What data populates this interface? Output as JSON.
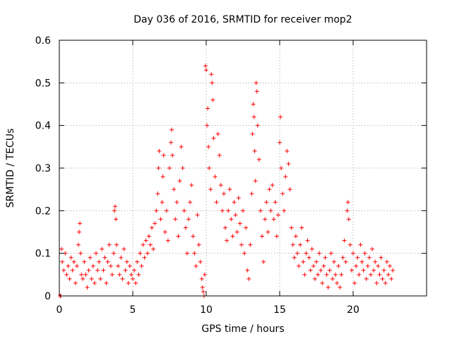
{
  "chart_data": {
    "type": "scatter",
    "title": "Day 036 of 2016, SRMTID for receiver mop2",
    "xlabel": "GPS time / hours",
    "ylabel": "SRMTID / TECUs",
    "xlim": [
      0,
      25
    ],
    "ylim": [
      0,
      0.6
    ],
    "xticks": [
      0,
      5,
      10,
      15,
      20
    ],
    "xtick_labels": [
      "0",
      "5",
      "10",
      "15",
      "20"
    ],
    "yticks": [
      0,
      0.1,
      0.2,
      0.3,
      0.4,
      0.5,
      0.6
    ],
    "ytick_labels": [
      "0",
      "0.1",
      "0.2",
      "0.3",
      "0.4",
      "0.5",
      "0.6"
    ],
    "grid": true,
    "marker": "+",
    "color": "#ff0000",
    "series": [
      {
        "name": "mop2",
        "points": [
          [
            0.05,
            0.0
          ],
          [
            0.1,
            0.0
          ],
          [
            0.15,
            0.11
          ],
          [
            0.2,
            0.08
          ],
          [
            0.3,
            0.06
          ],
          [
            0.4,
            0.1
          ],
          [
            0.5,
            0.05
          ],
          [
            0.6,
            0.07
          ],
          [
            0.7,
            0.04
          ],
          [
            0.8,
            0.09
          ],
          [
            0.9,
            0.06
          ],
          [
            1.0,
            0.08
          ],
          [
            1.1,
            0.03
          ],
          [
            1.2,
            0.07
          ],
          [
            1.3,
            0.12
          ],
          [
            1.35,
            0.15
          ],
          [
            1.4,
            0.17
          ],
          [
            1.45,
            0.1
          ],
          [
            1.5,
            0.05
          ],
          [
            1.6,
            0.04
          ],
          [
            1.7,
            0.08
          ],
          [
            1.8,
            0.05
          ],
          [
            1.9,
            0.02
          ],
          [
            2.0,
            0.06
          ],
          [
            2.1,
            0.09
          ],
          [
            2.2,
            0.04
          ],
          [
            2.3,
            0.07
          ],
          [
            2.4,
            0.03
          ],
          [
            2.5,
            0.1
          ],
          [
            2.6,
            0.06
          ],
          [
            2.7,
            0.08
          ],
          [
            2.8,
            0.04
          ],
          [
            2.9,
            0.11
          ],
          [
            3.0,
            0.06
          ],
          [
            3.1,
            0.09
          ],
          [
            3.2,
            0.03
          ],
          [
            3.3,
            0.08
          ],
          [
            3.4,
            0.12
          ],
          [
            3.5,
            0.07
          ],
          [
            3.6,
            0.05
          ],
          [
            3.7,
            0.1
          ],
          [
            3.75,
            0.2
          ],
          [
            3.8,
            0.21
          ],
          [
            3.85,
            0.18
          ],
          [
            3.9,
            0.12
          ],
          [
            4.0,
            0.07
          ],
          [
            4.1,
            0.05
          ],
          [
            4.2,
            0.09
          ],
          [
            4.3,
            0.04
          ],
          [
            4.4,
            0.11
          ],
          [
            4.5,
            0.06
          ],
          [
            4.6,
            0.08
          ],
          [
            4.7,
            0.03
          ],
          [
            4.8,
            0.07
          ],
          [
            4.9,
            0.05
          ],
          [
            5.0,
            0.04
          ],
          [
            5.1,
            0.06
          ],
          [
            5.2,
            0.03
          ],
          [
            5.3,
            0.08
          ],
          [
            5.4,
            0.05
          ],
          [
            5.5,
            0.1
          ],
          [
            5.6,
            0.07
          ],
          [
            5.7,
            0.12
          ],
          [
            5.8,
            0.09
          ],
          [
            5.9,
            0.13
          ],
          [
            6.0,
            0.1
          ],
          [
            6.1,
            0.14
          ],
          [
            6.2,
            0.12
          ],
          [
            6.3,
            0.16
          ],
          [
            6.4,
            0.11
          ],
          [
            6.5,
            0.17
          ],
          [
            6.6,
            0.2
          ],
          [
            6.7,
            0.24
          ],
          [
            6.75,
            0.3
          ],
          [
            6.8,
            0.34
          ],
          [
            6.9,
            0.18
          ],
          [
            7.0,
            0.22
          ],
          [
            7.05,
            0.28
          ],
          [
            7.1,
            0.33
          ],
          [
            7.2,
            0.15
          ],
          [
            7.3,
            0.2
          ],
          [
            7.4,
            0.13
          ],
          [
            7.5,
            0.3
          ],
          [
            7.6,
            0.36
          ],
          [
            7.65,
            0.39
          ],
          [
            7.7,
            0.33
          ],
          [
            7.8,
            0.25
          ],
          [
            7.9,
            0.18
          ],
          [
            8.0,
            0.22
          ],
          [
            8.1,
            0.14
          ],
          [
            8.2,
            0.27
          ],
          [
            8.3,
            0.35
          ],
          [
            8.4,
            0.3
          ],
          [
            8.5,
            0.2
          ],
          [
            8.6,
            0.16
          ],
          [
            8.7,
            0.1
          ],
          [
            8.8,
            0.18
          ],
          [
            8.9,
            0.22
          ],
          [
            9.0,
            0.26
          ],
          [
            9.1,
            0.14
          ],
          [
            9.2,
            0.1
          ],
          [
            9.3,
            0.07
          ],
          [
            9.4,
            0.19
          ],
          [
            9.5,
            0.12
          ],
          [
            9.6,
            0.08
          ],
          [
            9.7,
            0.04
          ],
          [
            9.75,
            0.02
          ],
          [
            9.8,
            0.01
          ],
          [
            9.85,
            0.0
          ],
          [
            9.9,
            0.05
          ],
          [
            9.95,
            0.54
          ],
          [
            10.0,
            0.53
          ],
          [
            10.05,
            0.4
          ],
          [
            10.1,
            0.44
          ],
          [
            10.15,
            0.35
          ],
          [
            10.2,
            0.3
          ],
          [
            10.3,
            0.25
          ],
          [
            10.35,
            0.52
          ],
          [
            10.4,
            0.5
          ],
          [
            10.45,
            0.46
          ],
          [
            10.5,
            0.37
          ],
          [
            10.6,
            0.28
          ],
          [
            10.7,
            0.22
          ],
          [
            10.8,
            0.38
          ],
          [
            10.9,
            0.33
          ],
          [
            11.0,
            0.26
          ],
          [
            11.1,
            0.2
          ],
          [
            11.2,
            0.24
          ],
          [
            11.3,
            0.16
          ],
          [
            11.4,
            0.13
          ],
          [
            11.5,
            0.2
          ],
          [
            11.6,
            0.25
          ],
          [
            11.7,
            0.18
          ],
          [
            11.8,
            0.14
          ],
          [
            11.9,
            0.22
          ],
          [
            12.0,
            0.19
          ],
          [
            12.1,
            0.15
          ],
          [
            12.2,
            0.23
          ],
          [
            12.3,
            0.17
          ],
          [
            12.4,
            0.12
          ],
          [
            12.5,
            0.2
          ],
          [
            12.6,
            0.1
          ],
          [
            12.7,
            0.16
          ],
          [
            12.8,
            0.06
          ],
          [
            12.9,
            0.04
          ],
          [
            13.0,
            0.12
          ],
          [
            13.1,
            0.24
          ],
          [
            13.15,
            0.38
          ],
          [
            13.2,
            0.45
          ],
          [
            13.25,
            0.42
          ],
          [
            13.3,
            0.34
          ],
          [
            13.35,
            0.27
          ],
          [
            13.4,
            0.5
          ],
          [
            13.45,
            0.48
          ],
          [
            13.5,
            0.4
          ],
          [
            13.6,
            0.32
          ],
          [
            13.7,
            0.2
          ],
          [
            13.8,
            0.14
          ],
          [
            13.9,
            0.08
          ],
          [
            14.0,
            0.18
          ],
          [
            14.1,
            0.22
          ],
          [
            14.2,
            0.15
          ],
          [
            14.3,
            0.25
          ],
          [
            14.4,
            0.2
          ],
          [
            14.5,
            0.26
          ],
          [
            14.6,
            0.18
          ],
          [
            14.7,
            0.22
          ],
          [
            14.8,
            0.14
          ],
          [
            14.9,
            0.19
          ],
          [
            15.0,
            0.36
          ],
          [
            15.05,
            0.42
          ],
          [
            15.1,
            0.3
          ],
          [
            15.2,
            0.24
          ],
          [
            15.3,
            0.2
          ],
          [
            15.4,
            0.28
          ],
          [
            15.5,
            0.34
          ],
          [
            15.6,
            0.31
          ],
          [
            15.7,
            0.25
          ],
          [
            15.8,
            0.16
          ],
          [
            15.9,
            0.12
          ],
          [
            16.0,
            0.09
          ],
          [
            16.1,
            0.14
          ],
          [
            16.2,
            0.1
          ],
          [
            16.3,
            0.07
          ],
          [
            16.4,
            0.12
          ],
          [
            16.5,
            0.16
          ],
          [
            16.6,
            0.08
          ],
          [
            16.7,
            0.05
          ],
          [
            16.8,
            0.1
          ],
          [
            16.9,
            0.13
          ],
          [
            17.0,
            0.09
          ],
          [
            17.1,
            0.06
          ],
          [
            17.2,
            0.11
          ],
          [
            17.3,
            0.07
          ],
          [
            17.4,
            0.04
          ],
          [
            17.5,
            0.08
          ],
          [
            17.6,
            0.05
          ],
          [
            17.7,
            0.1
          ],
          [
            17.8,
            0.06
          ],
          [
            17.9,
            0.03
          ],
          [
            18.0,
            0.07
          ],
          [
            18.1,
            0.09
          ],
          [
            18.2,
            0.05
          ],
          [
            18.3,
            0.02
          ],
          [
            18.4,
            0.06
          ],
          [
            18.5,
            0.1
          ],
          [
            18.6,
            0.04
          ],
          [
            18.7,
            0.08
          ],
          [
            18.8,
            0.05
          ],
          [
            18.9,
            0.03
          ],
          [
            19.0,
            0.07
          ],
          [
            19.1,
            0.02
          ],
          [
            19.2,
            0.05
          ],
          [
            19.3,
            0.09
          ],
          [
            19.4,
            0.13
          ],
          [
            19.5,
            0.08
          ],
          [
            19.6,
            0.2
          ],
          [
            19.65,
            0.22
          ],
          [
            19.7,
            0.18
          ],
          [
            19.8,
            0.12
          ],
          [
            19.9,
            0.06
          ],
          [
            20.0,
            0.1
          ],
          [
            20.1,
            0.03
          ],
          [
            20.2,
            0.07
          ],
          [
            20.3,
            0.09
          ],
          [
            20.4,
            0.05
          ],
          [
            20.5,
            0.12
          ],
          [
            20.6,
            0.08
          ],
          [
            20.7,
            0.06
          ],
          [
            20.8,
            0.1
          ],
          [
            20.9,
            0.04
          ],
          [
            21.0,
            0.07
          ],
          [
            21.1,
            0.09
          ],
          [
            21.2,
            0.05
          ],
          [
            21.3,
            0.11
          ],
          [
            21.4,
            0.06
          ],
          [
            21.5,
            0.08
          ],
          [
            21.6,
            0.03
          ],
          [
            21.7,
            0.07
          ],
          [
            21.8,
            0.05
          ],
          [
            21.9,
            0.09
          ],
          [
            22.0,
            0.04
          ],
          [
            22.1,
            0.06
          ],
          [
            22.2,
            0.03
          ],
          [
            22.3,
            0.08
          ],
          [
            22.4,
            0.05
          ],
          [
            22.5,
            0.07
          ],
          [
            22.6,
            0.04
          ],
          [
            22.7,
            0.06
          ]
        ]
      }
    ]
  }
}
